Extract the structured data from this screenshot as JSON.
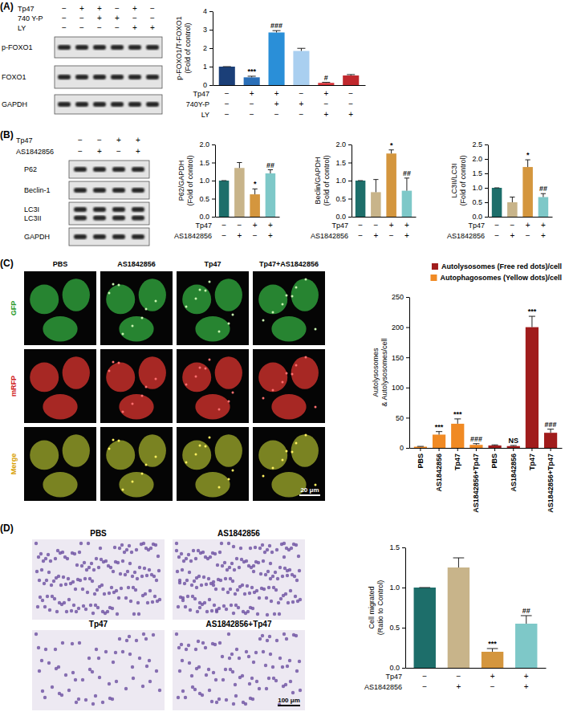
{
  "chart_data": [
    {
      "type": "bar",
      "ylabel": "p-FOXO1/T-FOXO1\n(Fold of control)",
      "values": [
        1.0,
        0.42,
        2.85,
        1.85,
        0.12,
        0.52
      ],
      "errors": [
        0,
        0.06,
        0.1,
        0.14,
        0.03,
        0.05
      ],
      "colors": [
        "#1b3f78",
        "#2a6fb8",
        "#2a8fd8",
        "#a9cff0",
        "#d8343a",
        "#c0282d"
      ],
      "annotations": [
        null,
        "***",
        "###",
        null,
        "#",
        null
      ],
      "ylim": [
        0,
        4
      ],
      "yticks": [
        0,
        1,
        2,
        3,
        4
      ],
      "conditions": [
        {
          "name": "Tp47",
          "signs": [
            "−",
            "+",
            "+",
            "−",
            "+",
            "−"
          ]
        },
        {
          "name": "740Y-P",
          "signs": [
            "−",
            "−",
            "+",
            "+",
            "−",
            "−"
          ]
        },
        {
          "name": "LY",
          "signs": [
            "−",
            "−",
            "−",
            "−",
            "+",
            "+"
          ]
        }
      ]
    },
    {
      "type": "bar",
      "ylabel": "P62/GAPDH\n(Fold of control)",
      "values": [
        1.0,
        1.35,
        0.62,
        1.2
      ],
      "errors": [
        0,
        0.15,
        0.15,
        0.1
      ],
      "colors": [
        "#1d6e6a",
        "#c8b48a",
        "#d4963e",
        "#7ec8c8"
      ],
      "annotations": [
        null,
        null,
        "*",
        "##"
      ],
      "ylim": [
        0,
        2
      ],
      "yticks": [
        {
          "value": 0,
          "label": "0.0"
        },
        {
          "value": 0.5,
          "label": "0.5"
        },
        {
          "value": 1,
          "label": "1.0"
        },
        {
          "value": 1.5,
          "label": "1.5"
        },
        {
          "value": 2,
          "label": "2.0"
        }
      ],
      "conditions": [
        {
          "name": "Tp47",
          "signs": [
            "−",
            "−",
            "+",
            "+"
          ]
        },
        {
          "name": "AS1842856",
          "signs": [
            "−",
            "+",
            "−",
            "+"
          ]
        }
      ]
    },
    {
      "type": "bar",
      "ylabel": "Beclin/GAPDH\n(Fold of control)",
      "values": [
        1.0,
        0.68,
        1.75,
        0.72
      ],
      "errors": [
        0,
        0.35,
        0.1,
        0.35
      ],
      "colors": [
        "#1d6e6a",
        "#c8b48a",
        "#d4963e",
        "#7ec8c8"
      ],
      "annotations": [
        null,
        null,
        "*",
        "##"
      ],
      "ylim": [
        0,
        2
      ],
      "yticks": [
        {
          "value": 0,
          "label": "0.0"
        },
        {
          "value": 0.5,
          "label": "0.5"
        },
        {
          "value": 1,
          "label": "1.0"
        },
        {
          "value": 1.5,
          "label": "1.5"
        },
        {
          "value": 2,
          "label": "2.0"
        }
      ],
      "conditions": [
        {
          "name": "Tp47",
          "signs": [
            "−",
            "−",
            "+",
            "+"
          ]
        },
        {
          "name": "AS1842856",
          "signs": [
            "−",
            "+",
            "−",
            "+"
          ]
        }
      ]
    },
    {
      "type": "bar",
      "ylabel": "LC3II/LC3I\n(Fold of control)",
      "values": [
        1.0,
        0.5,
        1.72,
        0.68
      ],
      "errors": [
        0,
        0.18,
        0.25,
        0.12
      ],
      "colors": [
        "#1d6e6a",
        "#c8b48a",
        "#d4963e",
        "#7ec8c8"
      ],
      "annotations": [
        null,
        null,
        "*",
        "##"
      ],
      "ylim": [
        0,
        2.5
      ],
      "yticks": [
        {
          "value": 0,
          "label": "0.0"
        },
        {
          "value": 0.5,
          "label": "0.5"
        },
        {
          "value": 1,
          "label": "1.0"
        },
        {
          "value": 1.5,
          "label": "1.5"
        },
        {
          "value": 2,
          "label": "2.0"
        },
        {
          "value": 2.5,
          "label": "2.5"
        }
      ],
      "conditions": [
        {
          "name": "Tp47",
          "signs": [
            "−",
            "−",
            "+",
            "+"
          ]
        },
        {
          "name": "AS1842856",
          "signs": [
            "−",
            "+",
            "−",
            "+"
          ]
        }
      ]
    },
    {
      "type": "bar",
      "ylabel": "Autolysosomes\n& Autolysosomes/cell",
      "categories": [
        "PBS",
        "AS1842856",
        "Tp47",
        "AS1842856+Tp47",
        "PBS",
        "AS1842856",
        "Tp47",
        "AS1842856+Tp47"
      ],
      "series": [
        {
          "name": "Autolysosomes (Free red dots)/cell",
          "color": "#a01c1c",
          "values": [
            null,
            null,
            null,
            null,
            4,
            3,
            200,
            25
          ],
          "errors": [
            null,
            null,
            null,
            null,
            1,
            1,
            18,
            6
          ],
          "annotations": [
            null,
            null,
            null,
            null,
            null,
            "NS",
            "***",
            "###"
          ]
        },
        {
          "name": "Autophagosomes (Yellow dots)/cell",
          "color": "#f08a24",
          "values": [
            2,
            22,
            40,
            5,
            null,
            null,
            null,
            null
          ],
          "errors": [
            0.5,
            5,
            8,
            2,
            null,
            null,
            null,
            null
          ],
          "annotations": [
            null,
            "***",
            "***",
            "###",
            null,
            null,
            null,
            null
          ]
        }
      ],
      "legend": "top-right",
      "ylim": [
        0,
        250
      ],
      "yticks": [
        0,
        50,
        100,
        150,
        200,
        250
      ]
    },
    {
      "type": "bar",
      "ylabel": "Cell migrated\n(Ratio to Control)",
      "values": [
        1.0,
        1.25,
        0.2,
        0.55
      ],
      "errors": [
        0,
        0.12,
        0.04,
        0.1
      ],
      "colors": [
        "#1d6e6a",
        "#c8b48a",
        "#d4963e",
        "#7ec8c8"
      ],
      "annotations": [
        null,
        null,
        "***",
        "##"
      ],
      "ylim": [
        0,
        1.5
      ],
      "yticks": [
        {
          "value": 0,
          "label": "0.0"
        },
        {
          "value": 0.5,
          "label": "0.5"
        },
        {
          "value": 1,
          "label": "1.0"
        },
        {
          "value": 1.5,
          "label": "1.5"
        }
      ],
      "conditions": [
        {
          "name": "Tp47",
          "signs": [
            "−",
            "−",
            "+",
            "+"
          ]
        },
        {
          "name": "AS1842856",
          "signs": [
            "−",
            "+",
            "−",
            "+"
          ]
        }
      ]
    }
  ],
  "figure": {
    "panel_labels": [
      "(A)",
      "(B)",
      "(C)",
      "(D)"
    ],
    "blots": [
      {
        "conditions": [
          {
            "name": "Tp47",
            "signs": [
              "−",
              "+",
              "+",
              "−",
              "+",
              "−"
            ]
          },
          {
            "name": "740 Y-P",
            "signs": [
              "−",
              "−",
              "+",
              "+",
              "−",
              "−"
            ]
          },
          {
            "name": "LY",
            "signs": [
              "−",
              "−",
              "−",
              "−",
              "+",
              "+"
            ]
          }
        ],
        "rows": [
          [
            "p-FOXO1"
          ],
          [
            "FOXO1"
          ],
          [
            "GAPDH"
          ]
        ]
      },
      {
        "conditions": [
          {
            "name": "Tp47",
            "signs": [
              "−",
              "−",
              "+",
              "+"
            ]
          },
          {
            "name": "AS1842856",
            "signs": [
              "−",
              "+",
              "−",
              "+"
            ]
          }
        ],
        "rows": [
          [
            "P62"
          ],
          [
            "Beclin-1"
          ],
          [
            "LC3I",
            "LC3II"
          ],
          [
            "GAPDH"
          ]
        ]
      }
    ],
    "micrographs": [
      {
        "columns": [
          "PBS",
          "AS1842856",
          "Tp47",
          "Tp47+AS1842856"
        ],
        "rows": [
          "GFP",
          "mRFP",
          "Merge"
        ],
        "scale_bar": "20 μm"
      },
      {
        "columns": [
          "PBS",
          "AS1842856",
          "Tp47",
          "AS1842856+Tp47"
        ],
        "scale_bar": "100 μm"
      }
    ]
  }
}
